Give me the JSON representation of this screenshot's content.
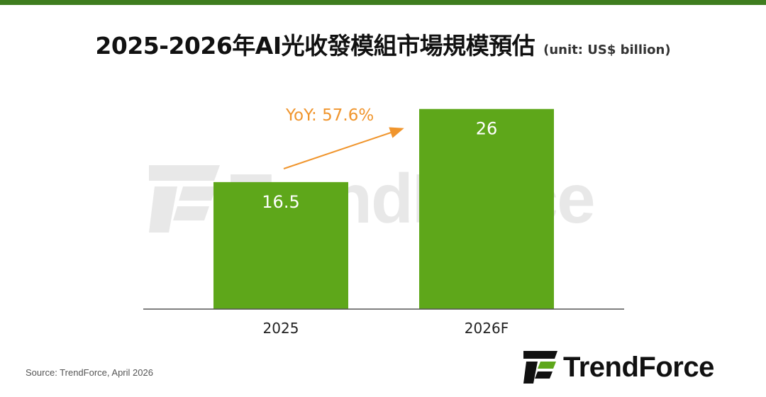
{
  "header": {
    "title": "2025-2026年AI光收發模組市場規模預估",
    "unit": "(unit: US$ billion)"
  },
  "annotation": {
    "yoy": "YoY: 57.6%",
    "color": "#f0952d"
  },
  "source": "Source: TrendForce, April 2026",
  "brand": {
    "name": "TrendForce",
    "accent": "#5ea71a"
  },
  "watermark": {
    "text": "TrendForce"
  },
  "colors": {
    "bar": "#5ea71a",
    "top_bar": "#3f7d1f",
    "axis": "#555555"
  },
  "chart_data": {
    "type": "bar",
    "categories": [
      "2025",
      "2026F"
    ],
    "values": [
      16.5,
      26
    ],
    "value_labels": [
      "16.5",
      "26"
    ],
    "ylim": [
      0,
      28
    ],
    "grid": false,
    "xlabel": "",
    "ylabel": ""
  }
}
